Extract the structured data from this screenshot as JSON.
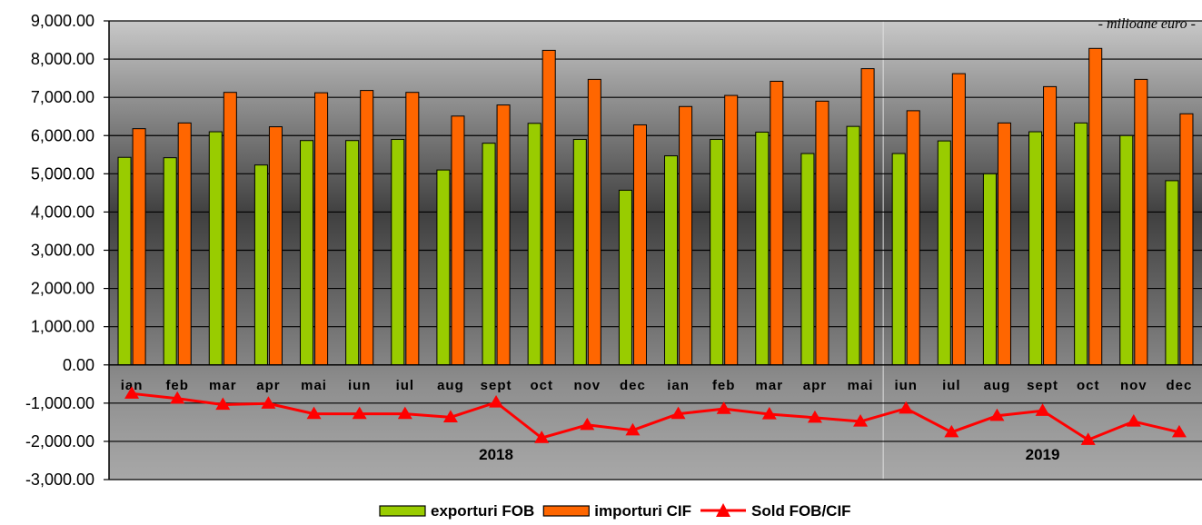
{
  "chart_data": {
    "type": "bar",
    "unit_note": "- milioane euro -",
    "groups": [
      "2018",
      "2019"
    ],
    "categories": [
      "ian",
      "feb",
      "mar",
      "apr",
      "mai",
      "iun",
      "iul",
      "aug",
      "sept",
      "oct",
      "nov",
      "dec",
      "ian",
      "feb",
      "mar",
      "apr",
      "mai",
      "iun",
      "iul",
      "aug",
      "sept",
      "oct",
      "nov",
      "dec"
    ],
    "category_group": [
      0,
      0,
      0,
      0,
      0,
      0,
      0,
      0,
      0,
      0,
      0,
      0,
      0,
      0,
      0,
      0,
      0,
      1,
      1,
      1,
      1,
      1,
      1,
      1
    ],
    "series": [
      {
        "name": "exporturi FOB",
        "kind": "bar",
        "color": "#99CC00",
        "values": [
          5430,
          5420,
          6100,
          5230,
          5870,
          5870,
          5900,
          5100,
          5800,
          6320,
          5900,
          4570,
          5470,
          5900,
          6090,
          5530,
          6240,
          5530,
          5860,
          5000,
          6100,
          6330,
          6000,
          4820
        ]
      },
      {
        "name": "importuri CIF",
        "kind": "bar",
        "color": "#FF6600",
        "values": [
          6180,
          6330,
          7130,
          6230,
          7120,
          7180,
          7130,
          6510,
          6800,
          8230,
          7470,
          6280,
          6760,
          7050,
          7420,
          6900,
          7750,
          6650,
          7620,
          6330,
          7280,
          8280,
          7470,
          6570
        ]
      },
      {
        "name": "Sold FOB/CIF",
        "kind": "line",
        "color": "#FF0000",
        "values": [
          -750,
          -880,
          -1040,
          -1010,
          -1280,
          -1280,
          -1280,
          -1370,
          -980,
          -1910,
          -1570,
          -1710,
          -1280,
          -1150,
          -1290,
          -1380,
          -1480,
          -1140,
          -1760,
          -1330,
          -1200,
          -1960,
          -1480,
          -1760
        ]
      }
    ],
    "ylim": [
      -3000,
      9000
    ],
    "yticks": [
      9000,
      8000,
      7000,
      6000,
      5000,
      4000,
      3000,
      2000,
      1000,
      0,
      -1000,
      -2000,
      -3000
    ],
    "ytick_labels": [
      "9,000.00",
      "8,000.00",
      "7,000.00",
      "6,000.00",
      "5,000.00",
      "4,000.00",
      "3,000.00",
      "2,000.00",
      "1,000.00",
      "0.00",
      "-1,000.00",
      "-2,000.00",
      "-3,000.00"
    ],
    "grid": true,
    "legend_position": "bottom"
  }
}
